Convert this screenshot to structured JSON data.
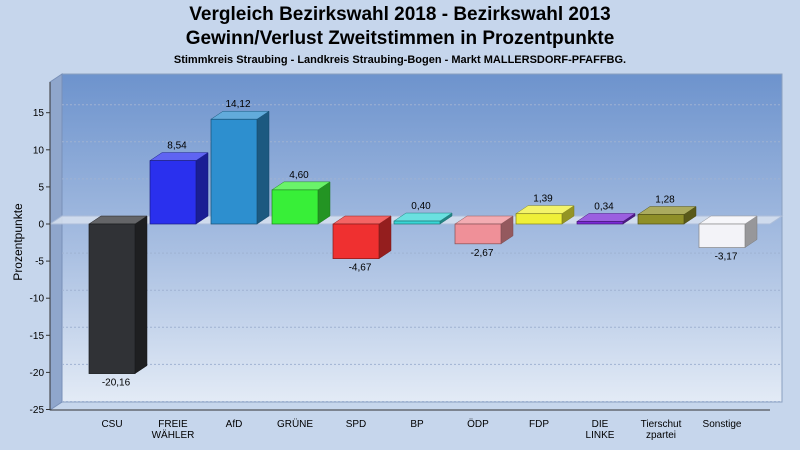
{
  "header": {
    "title_line1": "Vergleich Bezirkswahl 2018 - Bezirkswahl 2013",
    "title_line2": "Gewinn/Verlust Zweitstimmen in Prozentpunkte",
    "subtitle": "Stimmkreis Straubing - Landkreis Straubing-Bogen - Markt MALLERSDORF-PFAFFBG."
  },
  "chart_data": {
    "type": "bar",
    "title": "Vergleich Bezirkswahl 2018 - Bezirkswahl 2013 / Gewinn/Verlust Zweitstimmen in Prozentpunkte",
    "subtitle": "Stimmkreis Straubing - Landkreis Straubing-Bogen - Markt MALLERSDORF-PFAFFBG.",
    "ylabel": "Prozentpunkte",
    "xlabel": "",
    "ylim": [
      -25,
      20
    ],
    "yticks": [
      -25,
      -20,
      -15,
      -10,
      -5,
      0,
      5,
      10,
      15
    ],
    "grid": true,
    "legend": "none",
    "categories": [
      [
        "CSU"
      ],
      [
        "FREIE",
        "WÄHLER"
      ],
      [
        "AfD"
      ],
      [
        "GRÜNE"
      ],
      [
        "SPD"
      ],
      [
        "BP"
      ],
      [
        "ÖDP"
      ],
      [
        "FDP"
      ],
      [
        "DIE",
        "LINKE"
      ],
      [
        "Tierschut",
        "zpartei"
      ],
      [
        "Sonstige"
      ]
    ],
    "values": [
      -20.16,
      8.54,
      14.12,
      4.6,
      -4.67,
      0.4,
      -2.67,
      1.39,
      0.34,
      1.28,
      -3.17
    ],
    "value_labels": [
      "-20,16",
      "8,54",
      "14,12",
      "4,60",
      "-4,67",
      "0,40",
      "-2,67",
      "1,39",
      "0,34",
      "1,28",
      "-3,17"
    ],
    "colors": [
      "#303236",
      "#2a30ee",
      "#2d8fcf",
      "#38ef38",
      "#ef3030",
      "#38d6d6",
      "#ef9098",
      "#efef38",
      "#7a2ad6",
      "#8f8f28",
      "#f3f3f8"
    ]
  }
}
